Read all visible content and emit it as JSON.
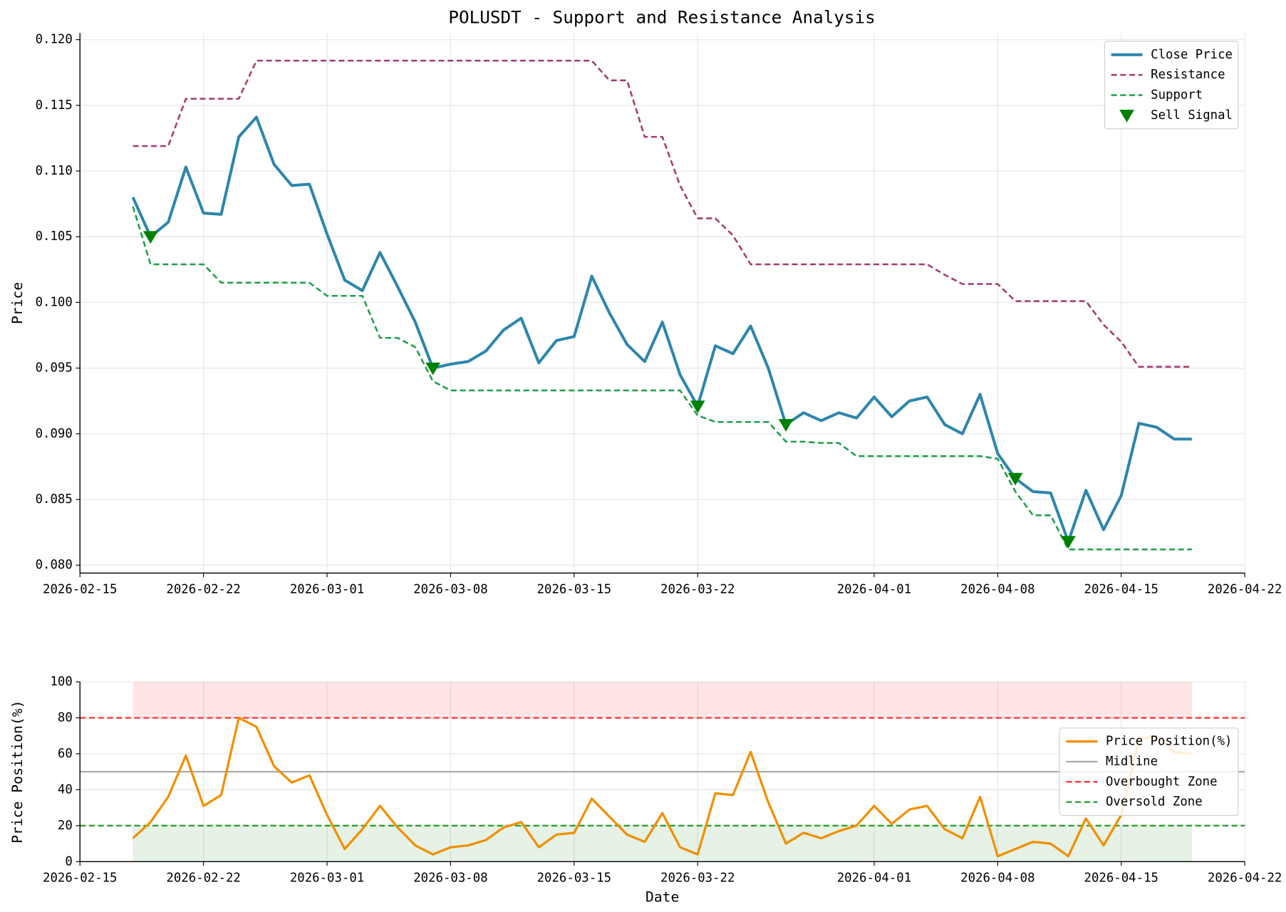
{
  "chart_data": [
    {
      "type": "line",
      "title": "POLUSDT - Support and Resistance Analysis",
      "y_label": "Price",
      "x": [
        "2026-02-18",
        "2026-02-19",
        "2026-02-20",
        "2026-02-21",
        "2026-02-22",
        "2026-02-23",
        "2026-02-24",
        "2026-02-25",
        "2026-02-26",
        "2026-02-27",
        "2026-02-28",
        "2026-03-01",
        "2026-03-02",
        "2026-03-03",
        "2026-03-04",
        "2026-03-05",
        "2026-03-06",
        "2026-03-07",
        "2026-03-08",
        "2026-03-09",
        "2026-03-10",
        "2026-03-11",
        "2026-03-12",
        "2026-03-13",
        "2026-03-14",
        "2026-03-15",
        "2026-03-16",
        "2026-03-17",
        "2026-03-18",
        "2026-03-19",
        "2026-03-20",
        "2026-03-21",
        "2026-03-22",
        "2026-03-23",
        "2026-03-24",
        "2026-03-25",
        "2026-03-26",
        "2026-03-27",
        "2026-03-28",
        "2026-03-29",
        "2026-03-30",
        "2026-03-31",
        "2026-04-01",
        "2026-04-02",
        "2026-04-03",
        "2026-04-04",
        "2026-04-05",
        "2026-04-06",
        "2026-04-07",
        "2026-04-08",
        "2026-04-09",
        "2026-04-10",
        "2026-04-11",
        "2026-04-12",
        "2026-04-13",
        "2026-04-14",
        "2026-04-15",
        "2026-04-16",
        "2026-04-17",
        "2026-04-18",
        "2026-04-19"
      ],
      "series": [
        {
          "name": "Close Price",
          "color": "#2e86ab",
          "linestyle": "solid",
          "width": 3.5,
          "values": [
            0.108,
            0.105,
            0.1061,
            0.1103,
            0.1068,
            0.1067,
            0.1126,
            0.1141,
            0.1105,
            0.1089,
            0.109,
            0.1052,
            0.1017,
            0.1009,
            0.1038,
            0.1012,
            0.0985,
            0.095,
            0.0953,
            0.0955,
            0.0963,
            0.0979,
            0.0988,
            0.0954,
            0.0971,
            0.0974,
            0.102,
            0.0992,
            0.0968,
            0.0955,
            0.0985,
            0.0945,
            0.0921,
            0.0967,
            0.0961,
            0.0982,
            0.095,
            0.0907,
            0.0916,
            0.091,
            0.0916,
            0.0912,
            0.0928,
            0.0913,
            0.0925,
            0.0928,
            0.0907,
            0.09,
            0.093,
            0.0885,
            0.0866,
            0.0856,
            0.0855,
            0.0818,
            0.0857,
            0.0827,
            0.0853,
            0.0908,
            0.0905,
            0.0896,
            0.0896
          ]
        },
        {
          "name": "Resistance",
          "color": "#a23b72",
          "linestyle": "dashed",
          "width": 2.2,
          "values": [
            0.1119,
            0.1119,
            0.1119,
            0.1155,
            0.1155,
            0.1155,
            0.1155,
            0.1184,
            0.1184,
            0.1184,
            0.1184,
            0.1184,
            0.1184,
            0.1184,
            0.1184,
            0.1184,
            0.1184,
            0.1184,
            0.1184,
            0.1184,
            0.1184,
            0.1184,
            0.1184,
            0.1184,
            0.1184,
            0.1184,
            0.1184,
            0.1169,
            0.1169,
            0.1126,
            0.1126,
            0.1089,
            0.1064,
            0.1064,
            0.1051,
            0.1029,
            0.1029,
            0.1029,
            0.1029,
            0.1029,
            0.1029,
            0.1029,
            0.1029,
            0.1029,
            0.1029,
            0.1029,
            0.1021,
            0.1014,
            0.1014,
            0.1014,
            0.1001,
            0.1001,
            0.1001,
            0.1001,
            0.1001,
            0.0983,
            0.097,
            0.0951,
            0.0951,
            0.0951,
            0.0951
          ]
        },
        {
          "name": "Support",
          "color": "#1e9e4a",
          "linestyle": "dashed",
          "width": 2.2,
          "values": [
            0.1073,
            0.1029,
            0.1029,
            0.1029,
            0.1029,
            0.1015,
            0.1015,
            0.1015,
            0.1015,
            0.1015,
            0.1015,
            0.1005,
            0.1005,
            0.1005,
            0.0973,
            0.0973,
            0.0966,
            0.094,
            0.0933,
            0.0933,
            0.0933,
            0.0933,
            0.0933,
            0.0933,
            0.0933,
            0.0933,
            0.0933,
            0.0933,
            0.0933,
            0.0933,
            0.0933,
            0.0933,
            0.0914,
            0.0909,
            0.0909,
            0.0909,
            0.0909,
            0.0894,
            0.0894,
            0.0893,
            0.0893,
            0.0883,
            0.0883,
            0.0883,
            0.0883,
            0.0883,
            0.0883,
            0.0883,
            0.0883,
            0.0881,
            0.0856,
            0.0838,
            0.0838,
            0.0812,
            0.0812,
            0.0812,
            0.0812,
            0.0812,
            0.0812,
            0.0812,
            0.0812
          ]
        },
        {
          "name": "Sell Signal",
          "type": "scatter",
          "color": "#008000",
          "marker": "triangle-down",
          "x": [
            "2026-02-19",
            "2026-03-07",
            "2026-03-22",
            "2026-03-27",
            "2026-04-09",
            "2026-04-12"
          ],
          "values": [
            0.105,
            0.095,
            0.0921,
            0.0907,
            0.0866,
            0.0818
          ]
        }
      ],
      "xlim": [
        "2026-02-15",
        "2026-04-22"
      ],
      "xticks": [
        "2026-02-15",
        "2026-02-22",
        "2026-03-01",
        "2026-03-08",
        "2026-03-15",
        "2026-03-22",
        "2026-04-01",
        "2026-04-08",
        "2026-04-15",
        "2026-04-22"
      ],
      "ylim": [
        0.0794,
        0.1205
      ],
      "yticks": [
        {
          "value": 0.08,
          "label": "0.080"
        },
        {
          "value": 0.085,
          "label": "0.085"
        },
        {
          "value": 0.09,
          "label": "0.090"
        },
        {
          "value": 0.095,
          "label": "0.095"
        },
        {
          "value": 0.1,
          "label": "0.100"
        },
        {
          "value": 0.105,
          "label": "0.105"
        },
        {
          "value": 0.11,
          "label": "0.110"
        },
        {
          "value": 0.115,
          "label": "0.115"
        },
        {
          "value": 0.12,
          "label": "0.120"
        }
      ],
      "grid": true,
      "legend": "upper right"
    },
    {
      "type": "line",
      "y_label": "Price Position(%)",
      "x_label": "Date",
      "x": [
        "2026-02-18",
        "2026-02-19",
        "2026-02-20",
        "2026-02-21",
        "2026-02-22",
        "2026-02-23",
        "2026-02-24",
        "2026-02-25",
        "2026-02-26",
        "2026-02-27",
        "2026-02-28",
        "2026-03-01",
        "2026-03-02",
        "2026-03-03",
        "2026-03-04",
        "2026-03-05",
        "2026-03-06",
        "2026-03-07",
        "2026-03-08",
        "2026-03-09",
        "2026-03-10",
        "2026-03-11",
        "2026-03-12",
        "2026-03-13",
        "2026-03-14",
        "2026-03-15",
        "2026-03-16",
        "2026-03-17",
        "2026-03-18",
        "2026-03-19",
        "2026-03-20",
        "2026-03-21",
        "2026-03-22",
        "2026-03-23",
        "2026-03-24",
        "2026-03-25",
        "2026-03-26",
        "2026-03-27",
        "2026-03-28",
        "2026-03-29",
        "2026-03-30",
        "2026-03-31",
        "2026-04-01",
        "2026-04-02",
        "2026-04-03",
        "2026-04-04",
        "2026-04-05",
        "2026-04-06",
        "2026-04-07",
        "2026-04-08",
        "2026-04-09",
        "2026-04-10",
        "2026-04-11",
        "2026-04-12",
        "2026-04-13",
        "2026-04-14",
        "2026-04-15",
        "2026-04-16",
        "2026-04-17",
        "2026-04-18",
        "2026-04-19"
      ],
      "series": [
        {
          "name": "Price Position(%)",
          "color": "#f18f01",
          "linestyle": "solid",
          "width": 2.8,
          "values": [
            13,
            22,
            36,
            59,
            31,
            37,
            80,
            75,
            53,
            44,
            48,
            26,
            7,
            18,
            31,
            19,
            9,
            4,
            8,
            9,
            12,
            19,
            22,
            8,
            15,
            16,
            35,
            25,
            15,
            11,
            27,
            8,
            4,
            38,
            37,
            61,
            33,
            10,
            16,
            13,
            17,
            20,
            31,
            21,
            29,
            31,
            18,
            13,
            36,
            3,
            7,
            11,
            10,
            3,
            24,
            9,
            26,
            68,
            70,
            61,
            60
          ]
        }
      ],
      "hlines": [
        {
          "name": "Midline",
          "value": 50,
          "color": "#aaaaaa",
          "linestyle": "solid"
        },
        {
          "name": "Overbought Zone",
          "value": 80,
          "color": "#ff3333",
          "linestyle": "dashed"
        },
        {
          "name": "Oversold Zone",
          "value": 20,
          "color": "#2ca02c",
          "linestyle": "dashed"
        }
      ],
      "bands": [
        {
          "from": 80,
          "to": 100,
          "color": "#ff0000",
          "alpha": 0.1
        },
        {
          "from": 0,
          "to": 20,
          "color": "#008000",
          "alpha": 0.1
        }
      ],
      "xlim": [
        "2026-02-15",
        "2026-04-22"
      ],
      "xticks": [
        "2026-02-15",
        "2026-02-22",
        "2026-03-01",
        "2026-03-08",
        "2026-03-15",
        "2026-03-22",
        "2026-04-01",
        "2026-04-08",
        "2026-04-15",
        "2026-04-22"
      ],
      "ylim": [
        0,
        100
      ],
      "yticks": [
        0,
        20,
        40,
        60,
        80,
        100
      ],
      "grid": true,
      "legend": "center right"
    }
  ]
}
